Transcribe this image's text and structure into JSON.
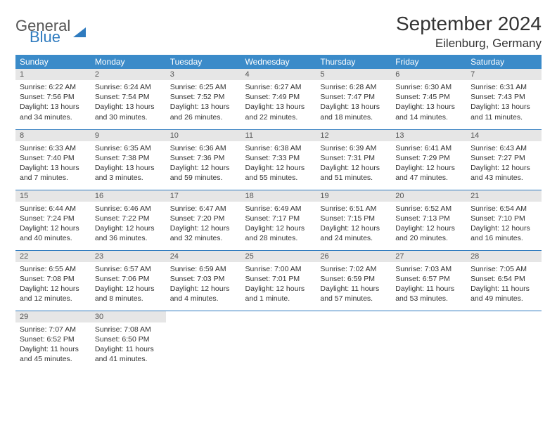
{
  "logo": {
    "word1": "General",
    "word2": "Blue"
  },
  "title": "September 2024",
  "location": "Eilenburg, Germany",
  "header_bg": "#3b8bc9",
  "rule_color": "#2f7bbf",
  "daynum_bg": "#e6e6e6",
  "day_names": [
    "Sunday",
    "Monday",
    "Tuesday",
    "Wednesday",
    "Thursday",
    "Friday",
    "Saturday"
  ],
  "days": [
    {
      "n": "1",
      "sunrise": "6:22 AM",
      "sunset": "7:56 PM",
      "day_h": "13",
      "day_m": "34"
    },
    {
      "n": "2",
      "sunrise": "6:24 AM",
      "sunset": "7:54 PM",
      "day_h": "13",
      "day_m": "30"
    },
    {
      "n": "3",
      "sunrise": "6:25 AM",
      "sunset": "7:52 PM",
      "day_h": "13",
      "day_m": "26"
    },
    {
      "n": "4",
      "sunrise": "6:27 AM",
      "sunset": "7:49 PM",
      "day_h": "13",
      "day_m": "22"
    },
    {
      "n": "5",
      "sunrise": "6:28 AM",
      "sunset": "7:47 PM",
      "day_h": "13",
      "day_m": "18"
    },
    {
      "n": "6",
      "sunrise": "6:30 AM",
      "sunset": "7:45 PM",
      "day_h": "13",
      "day_m": "14"
    },
    {
      "n": "7",
      "sunrise": "6:31 AM",
      "sunset": "7:43 PM",
      "day_h": "13",
      "day_m": "11"
    },
    {
      "n": "8",
      "sunrise": "6:33 AM",
      "sunset": "7:40 PM",
      "day_h": "13",
      "day_m": "7"
    },
    {
      "n": "9",
      "sunrise": "6:35 AM",
      "sunset": "7:38 PM",
      "day_h": "13",
      "day_m": "3"
    },
    {
      "n": "10",
      "sunrise": "6:36 AM",
      "sunset": "7:36 PM",
      "day_h": "12",
      "day_m": "59"
    },
    {
      "n": "11",
      "sunrise": "6:38 AM",
      "sunset": "7:33 PM",
      "day_h": "12",
      "day_m": "55"
    },
    {
      "n": "12",
      "sunrise": "6:39 AM",
      "sunset": "7:31 PM",
      "day_h": "12",
      "day_m": "51"
    },
    {
      "n": "13",
      "sunrise": "6:41 AM",
      "sunset": "7:29 PM",
      "day_h": "12",
      "day_m": "47"
    },
    {
      "n": "14",
      "sunrise": "6:43 AM",
      "sunset": "7:27 PM",
      "day_h": "12",
      "day_m": "43"
    },
    {
      "n": "15",
      "sunrise": "6:44 AM",
      "sunset": "7:24 PM",
      "day_h": "12",
      "day_m": "40"
    },
    {
      "n": "16",
      "sunrise": "6:46 AM",
      "sunset": "7:22 PM",
      "day_h": "12",
      "day_m": "36"
    },
    {
      "n": "17",
      "sunrise": "6:47 AM",
      "sunset": "7:20 PM",
      "day_h": "12",
      "day_m": "32"
    },
    {
      "n": "18",
      "sunrise": "6:49 AM",
      "sunset": "7:17 PM",
      "day_h": "12",
      "day_m": "28"
    },
    {
      "n": "19",
      "sunrise": "6:51 AM",
      "sunset": "7:15 PM",
      "day_h": "12",
      "day_m": "24"
    },
    {
      "n": "20",
      "sunrise": "6:52 AM",
      "sunset": "7:13 PM",
      "day_h": "12",
      "day_m": "20"
    },
    {
      "n": "21",
      "sunrise": "6:54 AM",
      "sunset": "7:10 PM",
      "day_h": "12",
      "day_m": "16"
    },
    {
      "n": "22",
      "sunrise": "6:55 AM",
      "sunset": "7:08 PM",
      "day_h": "12",
      "day_m": "12"
    },
    {
      "n": "23",
      "sunrise": "6:57 AM",
      "sunset": "7:06 PM",
      "day_h": "12",
      "day_m": "8"
    },
    {
      "n": "24",
      "sunrise": "6:59 AM",
      "sunset": "7:03 PM",
      "day_h": "12",
      "day_m": "4"
    },
    {
      "n": "25",
      "sunrise": "7:00 AM",
      "sunset": "7:01 PM",
      "day_h": "12",
      "day_m": "1"
    },
    {
      "n": "26",
      "sunrise": "7:02 AM",
      "sunset": "6:59 PM",
      "day_h": "11",
      "day_m": "57"
    },
    {
      "n": "27",
      "sunrise": "7:03 AM",
      "sunset": "6:57 PM",
      "day_h": "11",
      "day_m": "53"
    },
    {
      "n": "28",
      "sunrise": "7:05 AM",
      "sunset": "6:54 PM",
      "day_h": "11",
      "day_m": "49"
    },
    {
      "n": "29",
      "sunrise": "7:07 AM",
      "sunset": "6:52 PM",
      "day_h": "11",
      "day_m": "45"
    },
    {
      "n": "30",
      "sunrise": "7:08 AM",
      "sunset": "6:50 PM",
      "day_h": "11",
      "day_m": "41"
    }
  ],
  "labels": {
    "sunrise_prefix": "Sunrise: ",
    "sunset_prefix": "Sunset: ",
    "daylight_prefix": "Daylight: ",
    "hours_word": " hours",
    "and_word": "and ",
    "minutes_word": " minutes.",
    "minute_word": " minute."
  },
  "start_weekday": 0,
  "trailing_blanks": 5
}
